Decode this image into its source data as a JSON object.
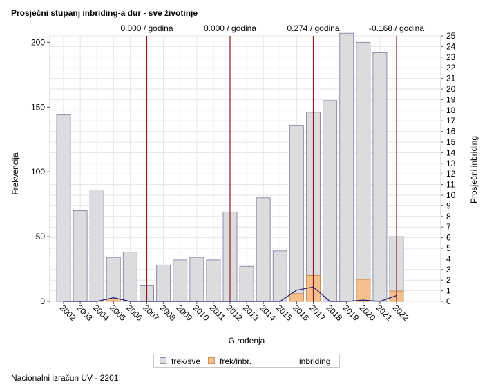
{
  "title": "Prosječni stupanj inbriding-a dur - sve životinje",
  "footer": "Nacionalni izračun UV - 2201",
  "colors": {
    "bar_all": "#dcdcde",
    "bar_all_stroke": "#8f8fad",
    "bar_inbr": "#f5bf8c",
    "bar_inbr_stroke": "#c99059",
    "line": "#1a1a6a",
    "refline": "#8b1a1a",
    "grid": "#e6e6e6"
  },
  "chart_data": {
    "type": "bar",
    "xlabel": "G.rođenja",
    "ylabel": "Frekvencija",
    "y2label": "Prosječni inbriding",
    "ylim": [
      0,
      205
    ],
    "y2lim": [
      0,
      25
    ],
    "yticks": [
      0,
      50,
      100,
      150,
      200
    ],
    "y2ticks": [
      0,
      1,
      2,
      3,
      4,
      5,
      6,
      7,
      8,
      9,
      10,
      11,
      12,
      13,
      14,
      15,
      16,
      17,
      18,
      19,
      20,
      21,
      22,
      23,
      24,
      25
    ],
    "grid": true,
    "legend_position": "bottom",
    "categories": [
      "2002",
      "2003",
      "2004",
      "2005",
      "2006",
      "2007",
      "2008",
      "2009",
      "2010",
      "2011",
      "2012",
      "2013",
      "2014",
      "2015",
      "2016",
      "2017",
      "2018",
      "2019",
      "2020",
      "2021",
      "2022"
    ],
    "series": [
      {
        "name": "frek/sve",
        "type": "bar",
        "values": [
          144,
          70,
          86,
          34,
          38,
          12,
          28,
          32,
          34,
          32,
          69,
          27,
          80,
          39,
          136,
          146,
          155,
          207,
          200,
          192,
          50
        ]
      },
      {
        "name": "frek/inbr.",
        "type": "bar",
        "values": [
          0,
          0,
          0,
          2,
          0,
          0,
          0,
          0,
          0,
          0,
          0,
          0,
          0,
          0,
          6,
          20,
          0,
          0,
          17,
          0,
          8
        ]
      },
      {
        "name": "inbriding",
        "type": "line",
        "axis": "y2",
        "values": [
          0,
          0,
          0,
          0.35,
          0,
          0,
          0,
          0,
          0,
          0,
          0,
          0,
          0,
          0,
          1.05,
          1.35,
          0,
          0,
          0.12,
          0,
          0.55
        ]
      }
    ],
    "reference_lines": [
      {
        "year": "2007",
        "label": "0.000 / godina"
      },
      {
        "year": "2012",
        "label": "0.000 / godina"
      },
      {
        "year": "2017",
        "label": "0.274 / godina"
      },
      {
        "year": "2022",
        "label": "-0.168 / godina"
      }
    ]
  }
}
